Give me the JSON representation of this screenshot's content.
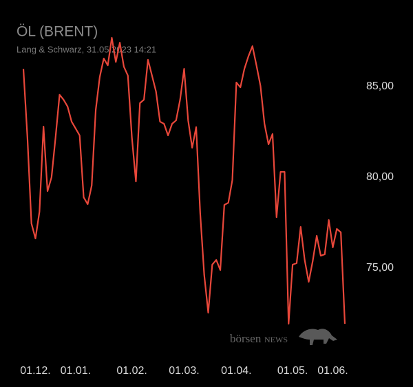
{
  "chart_data": {
    "type": "line",
    "title": "ÖL (BRENT)",
    "subtitle": "Lang & Schwarz, 31.05.2023 14:21",
    "watermark": [
      "börsen",
      "NEWS"
    ],
    "series": [
      {
        "color": "#e8473a",
        "values": [
          85.98,
          82.2,
          77.46,
          76.63,
          78.11,
          82.8,
          79.24,
          80.0,
          82.2,
          84.55,
          84.28,
          83.9,
          83.07,
          82.69,
          82.31,
          78.9,
          78.52,
          79.55,
          83.71,
          85.53,
          86.55,
          86.17,
          87.69,
          86.36,
          87.42,
          86.1,
          85.61,
          82.2,
          79.77,
          84.09,
          84.28,
          86.48,
          85.61,
          84.73,
          83.07,
          82.95,
          82.31,
          82.95,
          83.14,
          84.28,
          85.98,
          83.14,
          81.63,
          82.77,
          78.03,
          74.62,
          72.54,
          75.19,
          75.45,
          74.89,
          78.48,
          78.6,
          79.85,
          85.23,
          84.96,
          85.98,
          86.67,
          87.23,
          86.17,
          85.04,
          82.95,
          81.82,
          82.39,
          77.8,
          80.3,
          80.3,
          71.93,
          75.19,
          75.27,
          77.27,
          75.45,
          74.24,
          75.38,
          76.78,
          75.68,
          75.76,
          77.65,
          76.14,
          77.16,
          76.97,
          71.93
        ]
      }
    ],
    "xlim": [
      0,
      80
    ],
    "xticks": [
      {
        "value": 3,
        "label": "01.12."
      },
      {
        "value": 13,
        "label": "01.01."
      },
      {
        "value": 27,
        "label": "01.02."
      },
      {
        "value": 40,
        "label": "01.03."
      },
      {
        "value": 53,
        "label": "01.04."
      },
      {
        "value": 67,
        "label": "01.05."
      },
      {
        "value": 77,
        "label": "01.06."
      }
    ],
    "ylim": [
      71,
      88
    ],
    "yticks": [
      {
        "value": 75,
        "label": "75,00"
      },
      {
        "value": 80,
        "label": "80,00"
      },
      {
        "value": 85,
        "label": "85,00"
      }
    ],
    "grid": false
  }
}
